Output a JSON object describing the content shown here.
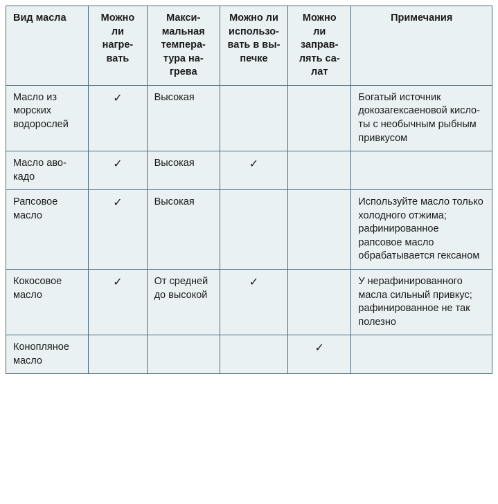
{
  "table": {
    "background_color": "#eaf1f2",
    "border_color": "#4a6a7a",
    "text_color": "#1a1a1a",
    "font_size": 14.5,
    "header_font_weight": "bold",
    "checkmark": "✓",
    "columns": [
      {
        "key": "type",
        "label": "Вид масла",
        "width_pct": 17,
        "align": "left"
      },
      {
        "key": "heat",
        "label": "Мож­но ли нагре­вать",
        "width_pct": 12,
        "align": "center"
      },
      {
        "key": "maxtemp",
        "label": "Макси­мальная темпера­тура на­грева",
        "width_pct": 15,
        "align": "left"
      },
      {
        "key": "bake",
        "label": "Можно ли использо­вать в вы­печке",
        "width_pct": 14,
        "align": "center"
      },
      {
        "key": "salad",
        "label": "Мож­но ли заправ­лять са­лат",
        "width_pct": 13,
        "align": "center"
      },
      {
        "key": "notes",
        "label": "Примечания",
        "width_pct": 29,
        "align": "left"
      }
    ],
    "rows": [
      {
        "type": "Масло из морских водорос­лей",
        "heat": "✓",
        "maxtemp": "Высокая",
        "bake": "",
        "salad": "",
        "notes": "Богатый источ­ник докозагекса­еновой кисло­ты с необычным рыбным при­вкусом"
      },
      {
        "type": "Масло аво­кадо",
        "heat": "✓",
        "maxtemp": "Высокая",
        "bake": "✓",
        "salad": "",
        "notes": ""
      },
      {
        "type": "Рапсовое масло",
        "heat": "✓",
        "maxtemp": "Высокая",
        "bake": "",
        "salad": "",
        "notes": "Используйте масло только хо­лодного отжима; рафинированное рапсовое масло обрабатывается гексаном"
      },
      {
        "type": "Кокосовое масло",
        "heat": "✓",
        "maxtemp": "От сред­ней до высо­кой",
        "bake": "✓",
        "salad": "",
        "notes": "У нерафиниро­ванного масла сильный прив­кус; рафиниро­ванное не так по­лезно"
      },
      {
        "type": "Конопля­ное масло",
        "heat": "",
        "maxtemp": "",
        "bake": "",
        "salad": "✓",
        "notes": ""
      }
    ]
  }
}
